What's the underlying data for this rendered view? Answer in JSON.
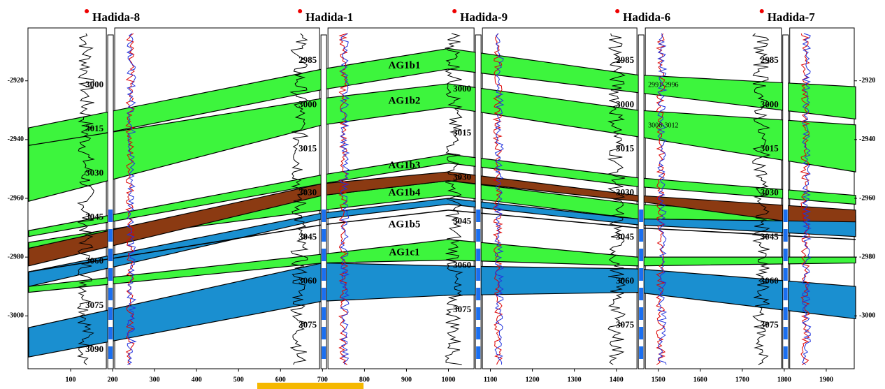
{
  "chart_data": {
    "type": "cross-section",
    "xlim": [
      0,
      1970
    ],
    "ylim": [
      -3018,
      -2902
    ],
    "xticks": [
      100,
      200,
      300,
      400,
      500,
      600,
      700,
      800,
      900,
      1000,
      1100,
      1200,
      1300,
      1400,
      1500,
      1600,
      1700,
      1800,
      1900
    ],
    "yticks": [
      -2920,
      -2940,
      -2960,
      -2980,
      -3000
    ],
    "layers": [
      {
        "name": "AG1b1",
        "color": "#3df53d",
        "x": [
          0,
          700,
          1000,
          1450,
          1970
        ],
        "top": [
          -2936,
          -2916,
          -2909,
          -2918,
          -2922
        ],
        "bottom": [
          -2943,
          -2923,
          -2916,
          -2924,
          -2933
        ]
      },
      {
        "name": "AG1b2",
        "color": "#3df53d",
        "x": [
          0,
          700,
          1000,
          1450,
          1970
        ],
        "top": [
          -2942,
          -2926,
          -2921,
          -2930,
          -2935
        ],
        "bottom": [
          -2961,
          -2935,
          -2929,
          -2939,
          -2951
        ]
      },
      {
        "name": "AG1b3",
        "color": "#3df53d",
        "x": [
          0,
          700,
          1000,
          1450,
          1970
        ],
        "top": [
          -2971,
          -2952,
          -2945,
          -2953,
          -2959
        ],
        "bottom": [
          -2973,
          -2955,
          -2948,
          -2956,
          -2962
        ]
      },
      {
        "name": "AG1b4",
        "color": "#3df53d",
        "x": [
          0,
          700,
          1000,
          1450,
          1970
        ],
        "top": [
          -2975,
          -2959,
          -2954,
          -2962,
          -2966
        ],
        "bottom": [
          -2977,
          -2964,
          -2959,
          -2967,
          -2968
        ]
      },
      {
        "color": "#8b3a12",
        "x": [
          0,
          700,
          1000,
          1450,
          1970
        ],
        "top": [
          -2977,
          -2955,
          -2951,
          -2959,
          -2964
        ],
        "bottom": [
          -2983,
          -2959,
          -2954,
          -2961,
          -2971
        ]
      },
      {
        "color": "#1a8fd0",
        "x": [
          0,
          700,
          1000,
          1450,
          1970
        ],
        "top": [
          -2985,
          -2965,
          -2960,
          -2967,
          -2968
        ],
        "bottom": [
          -2990,
          -2967,
          -2962,
          -2969,
          -2973
        ]
      },
      {
        "name": "AG1c1",
        "color": "#3df53d",
        "x": [
          0,
          700,
          1000,
          1450,
          1970
        ],
        "top": [
          -2990,
          -2979,
          -2974,
          -2980,
          -2980
        ],
        "bottom": [
          -2992,
          -2982,
          -2981,
          -2983,
          -2982
        ]
      },
      {
        "color": "#1a8fd0",
        "x": [
          0,
          700,
          1000,
          1450,
          1970
        ],
        "top": [
          -3004,
          -2982,
          -2983,
          -2984,
          -2990
        ],
        "bottom": [
          -3014,
          -2995,
          -2993,
          -2992,
          -3001
        ]
      }
    ],
    "horizons": [
      {
        "name": "AG1b5",
        "x": [
          0,
          700,
          1000,
          1450,
          1970
        ],
        "depth": [
          -2985,
          -2969,
          -2964,
          -2970,
          -2974
        ]
      }
    ],
    "wells": [
      {
        "name": "Hadida-8",
        "x": 195,
        "ylim": [
          3096.4,
          2980.5
        ],
        "yticks": [
          3000,
          3015,
          3030,
          3045,
          3060,
          3075,
          3090
        ]
      },
      {
        "name": "Hadida-1",
        "x": 703,
        "ylim": [
          3089.7,
          2973.8
        ],
        "yticks": [
          2985,
          3000,
          3015,
          3030,
          3045,
          3060,
          3075
        ]
      },
      {
        "name": "Hadida-9",
        "x": 1071,
        "ylim": [
          3095,
          2979.1
        ],
        "yticks": [
          3000,
          3015,
          3030,
          3045,
          3060,
          3075
        ]
      },
      {
        "name": "Hadida-6",
        "x": 1459,
        "ylim": [
          3089.7,
          2973.8
        ],
        "yticks": [
          2985,
          3000,
          3015,
          3030,
          3045,
          3060,
          3075
        ],
        "notes": [
          "2991-2996",
          "3006-3012"
        ]
      },
      {
        "name": "Hadida-7",
        "x": 1803,
        "ylim": [
          3089.7,
          2973.8
        ],
        "yticks": [
          2985,
          3000,
          3015,
          3030,
          3045,
          3060,
          3075
        ]
      }
    ]
  }
}
